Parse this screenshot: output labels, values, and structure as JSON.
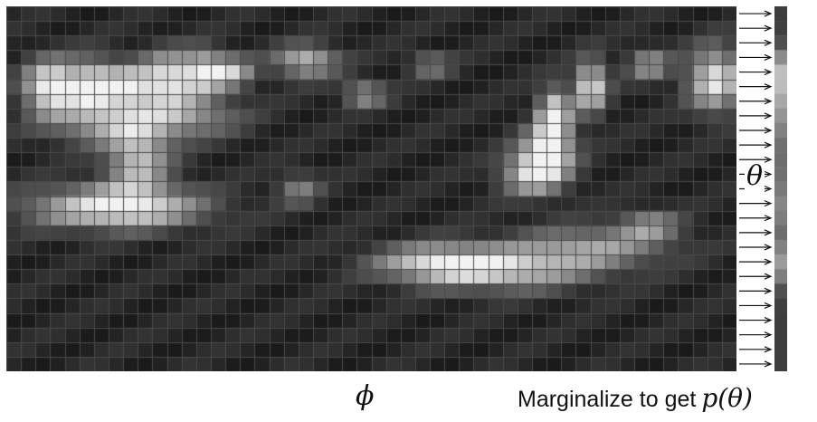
{
  "labels": {
    "theta": "θ",
    "phi": "ϕ",
    "caption_text": "Marginalize to get",
    "caption_math": "p(θ)"
  },
  "grid": {
    "cols": 50,
    "rows": 25
  },
  "arrows": {
    "count": 25
  },
  "colors": {
    "background": "#ffffff",
    "grid_line": "#4a4a4a",
    "arrow": "#111111",
    "text": "#111111"
  }
}
